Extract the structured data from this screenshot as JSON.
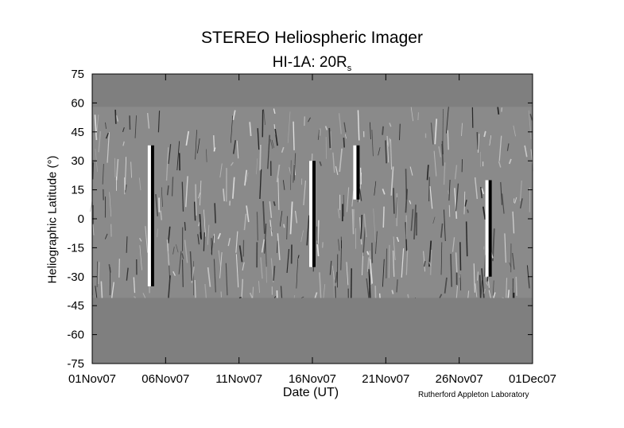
{
  "chart_data": {
    "type": "heatmap",
    "title": "STEREO Heliospheric Imager",
    "subtitle": "HI-1A: 20R",
    "subtitle_subscript": "s",
    "xlabel": "Date (UT)",
    "ylabel": "Heliographic Latitude (°)",
    "credit": "Rutherford Appleton Laboratory",
    "x_ticks": [
      "01Nov07",
      "06Nov07",
      "11Nov07",
      "16Nov07",
      "21Nov07",
      "26Nov07",
      "01Dec07"
    ],
    "y_ticks": [
      75,
      60,
      45,
      30,
      15,
      0,
      -15,
      -30,
      -45,
      -60,
      -75
    ],
    "ylim": [
      -75,
      75
    ],
    "xlim": [
      "01Nov07",
      "01Dec07"
    ],
    "data_latitude_range": [
      -41,
      58
    ],
    "colormap": "grayscale",
    "fill_color": "#7f7f7f",
    "bright_features": [
      {
        "date": "05Nov07",
        "lat_range": [
          -35,
          38
        ],
        "label": ""
      },
      {
        "date": "16Nov07",
        "lat_range": [
          -25,
          30
        ],
        "label": ""
      },
      {
        "date": "19Nov07",
        "lat_range": [
          10,
          38
        ],
        "label": ""
      },
      {
        "date": "28Nov07",
        "lat_range": [
          -30,
          20
        ],
        "label": ""
      }
    ]
  }
}
